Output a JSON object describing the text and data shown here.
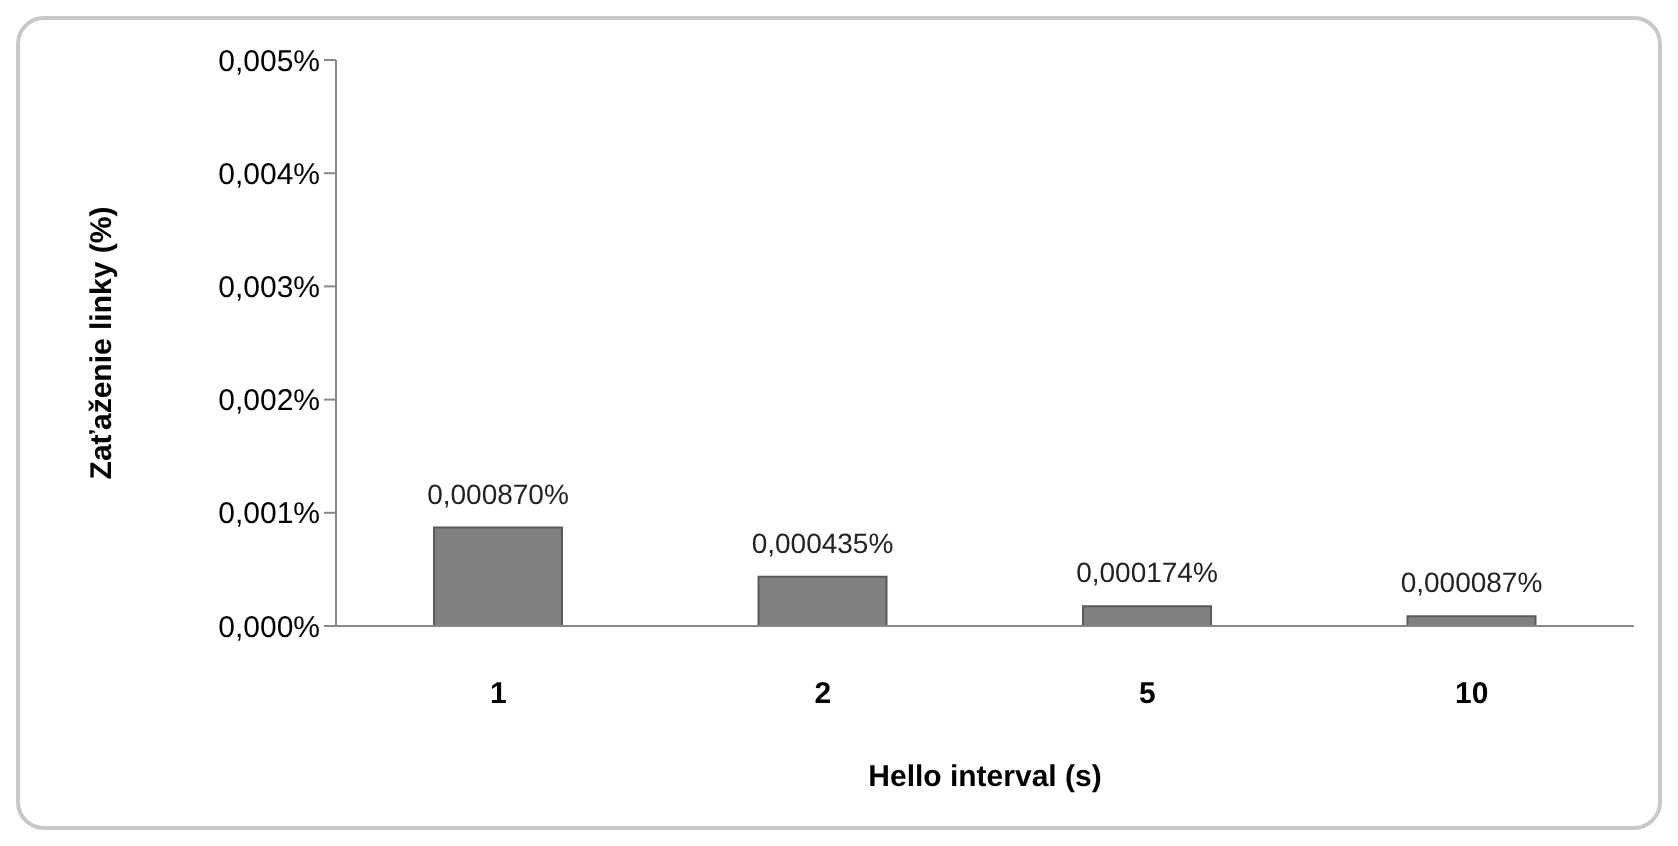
{
  "chart_data": {
    "type": "bar",
    "xlabel": "Hello interval (s)",
    "ylabel": "Zaťaženie linky (%)",
    "categories": [
      "1",
      "2",
      "5",
      "10"
    ],
    "values": [
      0.00087,
      0.000435,
      0.000174,
      8.7e-05
    ],
    "value_labels": [
      "0,000870%",
      "0,000435%",
      "0,000174%",
      "0,000087%"
    ],
    "color": "#808080",
    "ylim": [
      0,
      0.005
    ],
    "yticks": [
      {
        "value": 0,
        "label": "0,000%"
      },
      {
        "value": 0.001,
        "label": "0,001%"
      },
      {
        "value": 0.002,
        "label": "0,002%"
      },
      {
        "value": 0.003,
        "label": "0,003%"
      },
      {
        "value": 0.004,
        "label": "0,004%"
      },
      {
        "value": 0.005,
        "label": "0,005%"
      }
    ],
    "grid": false,
    "legend": false
  }
}
